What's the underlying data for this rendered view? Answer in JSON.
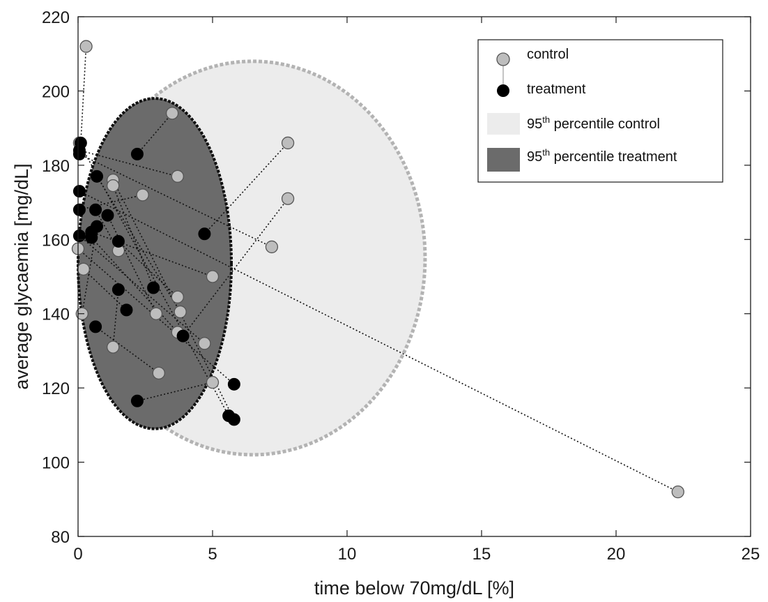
{
  "chart_data": {
    "type": "scatter",
    "xlabel": "time below 70mg/dL [%]",
    "ylabel": "average glycaemia [mg/dL]",
    "xlim": [
      0,
      25
    ],
    "ylim": [
      80,
      220
    ],
    "xticks": [
      0,
      5,
      10,
      15,
      20,
      25
    ],
    "yticks": [
      80,
      100,
      120,
      140,
      160,
      180,
      200,
      220
    ],
    "grid": false,
    "legend_position": "top-right",
    "legend": {
      "control": "control",
      "treatment": "treatment",
      "region_control_pre": "95",
      "region_control_sup": "th",
      "region_control_post": " percentile control",
      "region_treatment_pre": "95",
      "region_treatment_sup": "th",
      "region_treatment_post": " percentile treatment"
    },
    "colors": {
      "control_marker": "#bdbdbd",
      "treatment_marker": "#000000",
      "region_control_fill": "#ececec",
      "region_control_border": "#b3b3b3",
      "region_treatment_fill": "#6b6b6b",
      "region_treatment_border": "#111111"
    },
    "region_control": {
      "center": [
        6.5,
        155
      ],
      "semi_axes_data": [
        6.4,
        53
      ],
      "rotation_deg": 0
    },
    "region_treatment": {
      "center": [
        2.85,
        153.5
      ],
      "semi_axes_data": [
        2.85,
        44.5
      ],
      "rotation_deg": 0
    },
    "series": [
      {
        "name": "control",
        "points": [
          [
            0.3,
            212
          ],
          [
            3.5,
            194
          ],
          [
            7.8,
            186
          ],
          [
            0.05,
            186
          ],
          [
            3.7,
            177
          ],
          [
            1.3,
            176
          ],
          [
            1.3,
            174.5
          ],
          [
            2.4,
            172
          ],
          [
            7.8,
            171
          ],
          [
            7.2,
            158
          ],
          [
            0,
            157.5
          ],
          [
            1.5,
            157
          ],
          [
            0.2,
            152
          ],
          [
            5.0,
            150
          ],
          [
            3.7,
            144.5
          ],
          [
            3.8,
            140.5
          ],
          [
            2.9,
            140
          ],
          [
            0.15,
            140
          ],
          [
            3.7,
            135
          ],
          [
            4.7,
            132
          ],
          [
            1.3,
            131
          ],
          [
            3.0,
            124
          ],
          [
            5.0,
            121.5
          ],
          [
            22.3,
            92
          ]
        ]
      },
      {
        "name": "treatment",
        "points": [
          [
            0.1,
            186
          ],
          [
            0.05,
            184
          ],
          [
            0.05,
            183
          ],
          [
            2.2,
            183
          ],
          [
            0.7,
            177
          ],
          [
            0.05,
            173
          ],
          [
            0.65,
            168
          ],
          [
            0.05,
            168
          ],
          [
            1.1,
            166.5
          ],
          [
            0.7,
            163.5
          ],
          [
            0.5,
            162
          ],
          [
            4.7,
            161.5
          ],
          [
            0.05,
            161
          ],
          [
            0.5,
            160.5
          ],
          [
            1.5,
            159.5
          ],
          [
            2.8,
            147
          ],
          [
            1.5,
            146.5
          ],
          [
            1.8,
            141
          ],
          [
            0.65,
            136.5
          ],
          [
            3.9,
            134
          ],
          [
            5.8,
            121
          ],
          [
            2.2,
            116.5
          ],
          [
            5.6,
            112.5
          ],
          [
            5.8,
            111.5
          ]
        ]
      }
    ],
    "pairs": [
      [
        [
          0.3,
          212
        ],
        [
          0.1,
          186
        ]
      ],
      [
        [
          3.5,
          194
        ],
        [
          2.2,
          183
        ]
      ],
      [
        [
          7.8,
          186
        ],
        [
          4.7,
          161.5
        ]
      ],
      [
        [
          3.7,
          177
        ],
        [
          0.05,
          184
        ]
      ],
      [
        [
          7.8,
          171
        ],
        [
          3.9,
          134
        ]
      ],
      [
        [
          7.2,
          158
        ],
        [
          0.05,
          183
        ]
      ],
      [
        [
          22.3,
          92
        ],
        [
          0.05,
          173
        ]
      ],
      [
        [
          0.05,
          186
        ],
        [
          5.6,
          112.5
        ]
      ],
      [
        [
          1.3,
          176
        ],
        [
          5.8,
          111.5
        ]
      ],
      [
        [
          1.3,
          174.5
        ],
        [
          2.8,
          147
        ]
      ],
      [
        [
          2.4,
          172
        ],
        [
          0.05,
          168
        ]
      ],
      [
        [
          0,
          157.5
        ],
        [
          5.8,
          121
        ]
      ],
      [
        [
          1.5,
          157
        ],
        [
          0.65,
          168
        ]
      ],
      [
        [
          0.2,
          152
        ],
        [
          1.8,
          141
        ]
      ],
      [
        [
          5.0,
          150
        ],
        [
          0.5,
          162
        ]
      ],
      [
        [
          3.7,
          144.5
        ],
        [
          1.5,
          159.5
        ]
      ],
      [
        [
          3.8,
          140.5
        ],
        [
          0.7,
          177
        ]
      ],
      [
        [
          2.9,
          140
        ],
        [
          1.1,
          166.5
        ]
      ],
      [
        [
          0.15,
          140
        ],
        [
          0.7,
          163.5
        ]
      ],
      [
        [
          3.7,
          135
        ],
        [
          0.5,
          160.5
        ]
      ],
      [
        [
          4.7,
          132
        ],
        [
          0.05,
          161
        ]
      ],
      [
        [
          1.3,
          131
        ],
        [
          1.5,
          146.5
        ]
      ],
      [
        [
          3.0,
          124
        ],
        [
          0.65,
          136.5
        ]
      ],
      [
        [
          5.0,
          121.5
        ],
        [
          2.2,
          116.5
        ]
      ]
    ]
  }
}
